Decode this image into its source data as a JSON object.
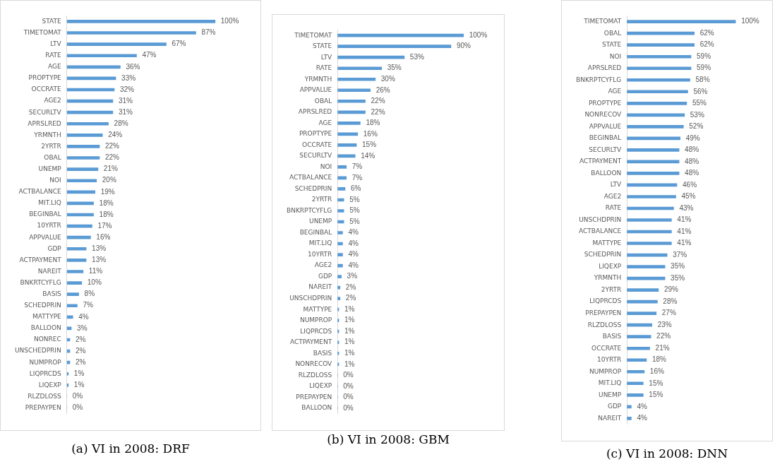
{
  "chart_data": [
    {
      "type": "bar",
      "orientation": "horizontal",
      "title": "(a) VI in 2008: DRF",
      "color": "#5b9bd5",
      "tick_labels": "y",
      "categories": [
        "STATE",
        "TIMETOMAT",
        "LTV",
        "RATE",
        "AGE",
        "PROPTYPE",
        "OCCRATE",
        "AGE2",
        "SECURLTV",
        "APRSLRED",
        "YRMNTH",
        "2YRTR",
        "OBAL",
        "UNEMP",
        "NOI",
        "ACTBALANCE",
        "MIT.LIQ",
        "BEGINBAL",
        "10YRTR",
        "APPVALUE",
        "GDP",
        "ACTPAYMENT",
        "NAREIT",
        "BNKRTCYFLG",
        "BASIS",
        "SCHEDPRIN",
        "MATTYPE",
        "BALLOON",
        "NONREC",
        "UNSCHEDPRIN",
        "NUMPROP",
        "LIQPRCDS",
        "LIQEXP",
        "RLZDLOSS",
        "PREPAYPEN"
      ],
      "values": [
        100,
        87,
        67,
        47,
        36,
        33,
        32,
        31,
        31,
        28,
        24,
        22,
        22,
        21,
        20,
        19,
        18,
        18,
        17,
        16,
        13,
        13,
        11,
        10,
        8,
        7,
        4,
        3,
        2,
        2,
        2,
        1,
        1,
        0,
        0
      ],
      "value_labels": [
        "100%",
        "87%",
        "67%",
        "47%",
        "36%",
        "33%",
        "32%",
        "31%",
        "31%",
        "28%",
        "24%",
        "22%",
        "22%",
        "21%",
        "20%",
        "19%",
        "18%",
        "18%",
        "17%",
        "16%",
        "13%",
        "13%",
        "11%",
        "10%",
        "8%",
        "7%",
        "4%",
        "3%",
        "2%",
        "2%",
        "2%",
        "1%",
        "1%",
        "0%",
        "0%"
      ]
    },
    {
      "type": "bar",
      "orientation": "horizontal",
      "title": "(b) VI in 2008: GBM",
      "color": "#5b9bd5",
      "tick_labels": "y",
      "categories": [
        "TIMETOMAT",
        "STATE",
        "LTV",
        "RATE",
        "YRMNTH",
        "APPVALUE",
        "OBAL",
        "APRSLRED",
        "AGE",
        "PROPTYPE",
        "OCCRATE",
        "SECURLTV",
        "NOI",
        "ACTBALANCE",
        "SCHEDPRIN",
        "2YRTR",
        "BNKRPTCYFLG",
        "UNEMP",
        "BEGINBAL",
        "MIT.LIQ",
        "10YRTR",
        "AGE2",
        "GDP",
        "NAREIT",
        "UNSCHDPRIN",
        "MATTYPE",
        "NUMPROP",
        "LIQPRCDS",
        "ACTPAYMENT",
        "BASIS",
        "NONRECOV",
        "RLZDLOSS",
        "LIQEXP",
        "PREPAYPEN",
        "BALLOON"
      ],
      "values": [
        100,
        90,
        53,
        35,
        30,
        26,
        22,
        22,
        18,
        16,
        15,
        14,
        7,
        7,
        6,
        5,
        5,
        5,
        4,
        4,
        4,
        4,
        3,
        2,
        2,
        1,
        1,
        1,
        1,
        1,
        1,
        0,
        0,
        0,
        0
      ],
      "value_labels": [
        "100%",
        "90%",
        "53%",
        "35%",
        "30%",
        "26%",
        "22%",
        "22%",
        "18%",
        "16%",
        "15%",
        "14%",
        "7%",
        "7%",
        "6%",
        "5%",
        "5%",
        "5%",
        "4%",
        "4%",
        "4%",
        "4%",
        "3%",
        "2%",
        "2%",
        "1%",
        "1%",
        "1%",
        "1%",
        "1%",
        "1%",
        "0%",
        "0%",
        "0%",
        "0%"
      ]
    },
    {
      "type": "bar",
      "orientation": "horizontal",
      "title": "(c) VI in 2008: DNN",
      "color": "#5b9bd5",
      "tick_labels": "y",
      "categories": [
        "TIMETOMAT",
        "OBAL",
        "STATE",
        "NOI",
        "APRSLRED",
        "BNKRPTCYFLG",
        "AGE",
        "PROPTYPE",
        "NONRECOV",
        "APPVALUE",
        "BEGINBAL",
        "SECURLTV",
        "ACTPAYMENT",
        "BALLOON",
        "LTV",
        "AGE2",
        "RATE",
        "UNSCHDPRIN",
        "ACTBALANCE",
        "MATTYPE",
        "SCHEDPRIN",
        "LIQEXP",
        "YRMNTH",
        "2YRTR",
        "LIQPRCDS",
        "PREPAYPEN",
        "RLZDLOSS",
        "BASIS",
        "OCCRATE",
        "10YRTR",
        "NUMPROP",
        "MIT.LIQ",
        "UNEMP",
        "GDP",
        "NAREIT"
      ],
      "values": [
        100,
        62,
        62,
        59,
        59,
        58,
        56,
        55,
        53,
        52,
        49,
        48,
        48,
        48,
        46,
        45,
        43,
        41,
        41,
        41,
        37,
        35,
        35,
        29,
        28,
        27,
        23,
        22,
        21,
        18,
        16,
        15,
        15,
        4,
        4
      ],
      "value_labels": [
        "100%",
        "62%",
        "62%",
        "59%",
        "59%",
        "58%",
        "56%",
        "55%",
        "53%",
        "52%",
        "49%",
        "48%",
        "48%",
        "48%",
        "46%",
        "45%",
        "43%",
        "41%",
        "41%",
        "41%",
        "37%",
        "35%",
        "35%",
        "29%",
        "28%",
        "27%",
        "23%",
        "22%",
        "21%",
        "18%",
        "16%",
        "15%",
        "15%",
        "4%",
        "4%"
      ]
    }
  ]
}
